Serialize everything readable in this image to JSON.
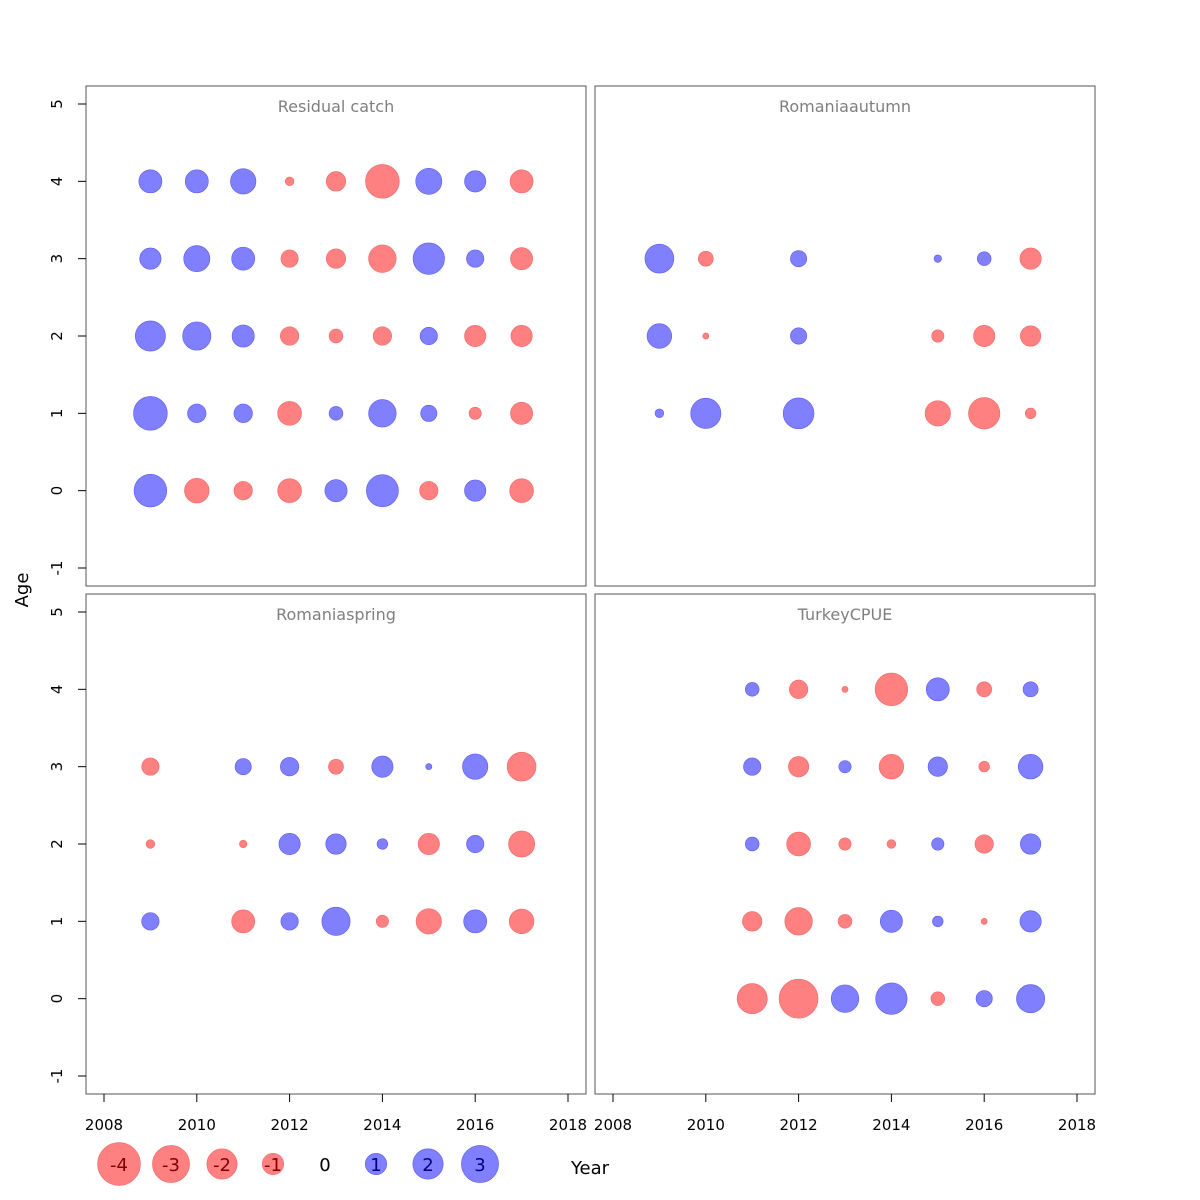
{
  "chart_data": {
    "type": "scatter",
    "subtype": "bubble-residuals",
    "xlabel": "Year",
    "ylabel": "Age",
    "xlim": [
      2008,
      2018
    ],
    "ylim": [
      -1,
      5
    ],
    "x_ticks": [
      "2008",
      "2010",
      "2012",
      "2014",
      "2016",
      "2018"
    ],
    "y_ticks": [
      "-1",
      "0",
      "1",
      "2",
      "3",
      "4",
      "5"
    ],
    "colors": {
      "positive": "#8080ff",
      "negative": "#ff8080"
    },
    "legend": {
      "placement": "bottom-left",
      "items": [
        {
          "label": "-4",
          "value": -4
        },
        {
          "label": "-3",
          "value": -3
        },
        {
          "label": "-2",
          "value": -2
        },
        {
          "label": "-1",
          "value": -1
        },
        {
          "label": "0",
          "value": 0
        },
        {
          "label": "1",
          "value": 1
        },
        {
          "label": "2",
          "value": 2
        },
        {
          "label": "3",
          "value": 3
        }
      ]
    },
    "panels": [
      {
        "title": "Residual catch",
        "points": [
          [
            2009,
            4,
            1.4
          ],
          [
            2010,
            4,
            1.4
          ],
          [
            2011,
            4,
            1.7
          ],
          [
            2012,
            4,
            -0.2
          ],
          [
            2013,
            4,
            -1.0
          ],
          [
            2014,
            4,
            -3.0
          ],
          [
            2015,
            4,
            1.8
          ],
          [
            2016,
            4,
            1.2
          ],
          [
            2017,
            4,
            -1.4
          ],
          [
            2009,
            3,
            1.2
          ],
          [
            2010,
            3,
            1.8
          ],
          [
            2011,
            3,
            1.4
          ],
          [
            2012,
            3,
            -0.8
          ],
          [
            2013,
            3,
            -1.0
          ],
          [
            2014,
            3,
            -2.0
          ],
          [
            2015,
            3,
            2.6
          ],
          [
            2016,
            3,
            0.8
          ],
          [
            2017,
            3,
            -1.3
          ],
          [
            2009,
            2,
            2.4
          ],
          [
            2010,
            2,
            2.1
          ],
          [
            2011,
            2,
            1.3
          ],
          [
            2012,
            2,
            -0.9
          ],
          [
            2013,
            2,
            -0.5
          ],
          [
            2014,
            2,
            -0.9
          ],
          [
            2015,
            2,
            0.8
          ],
          [
            2016,
            2,
            -1.2
          ],
          [
            2017,
            2,
            -1.2
          ],
          [
            2009,
            1,
            3.0
          ],
          [
            2010,
            1,
            0.9
          ],
          [
            2011,
            1,
            0.9
          ],
          [
            2012,
            1,
            -1.5
          ],
          [
            2013,
            1,
            0.5
          ],
          [
            2014,
            1,
            2.0
          ],
          [
            2015,
            1,
            0.7
          ],
          [
            2016,
            1,
            -0.4
          ],
          [
            2017,
            1,
            -1.3
          ],
          [
            2009,
            0,
            2.8
          ],
          [
            2010,
            0,
            -1.6
          ],
          [
            2011,
            0,
            -0.9
          ],
          [
            2012,
            0,
            -1.5
          ],
          [
            2013,
            0,
            1.3
          ],
          [
            2014,
            0,
            2.7
          ],
          [
            2015,
            0,
            -0.9
          ],
          [
            2016,
            0,
            1.2
          ],
          [
            2017,
            0,
            -1.5
          ]
        ]
      },
      {
        "title": "Romaniaautumn",
        "points": [
          [
            2009,
            3,
            2.2
          ],
          [
            2010,
            3,
            -0.6
          ],
          [
            2012,
            3,
            0.7
          ],
          [
            2015,
            3,
            0.15
          ],
          [
            2016,
            3,
            0.5
          ],
          [
            2017,
            3,
            -1.2
          ],
          [
            2009,
            2,
            1.6
          ],
          [
            2010,
            2,
            -0.1
          ],
          [
            2012,
            2,
            0.7
          ],
          [
            2015,
            2,
            -0.4
          ],
          [
            2016,
            2,
            -1.2
          ],
          [
            2017,
            2,
            -1.1
          ],
          [
            2009,
            1,
            0.2
          ],
          [
            2010,
            1,
            2.4
          ],
          [
            2012,
            1,
            2.5
          ],
          [
            2015,
            1,
            -1.7
          ],
          [
            2016,
            1,
            -2.6
          ],
          [
            2017,
            1,
            -0.3
          ]
        ]
      },
      {
        "title": "Romaniaspring",
        "points": [
          [
            2009,
            3,
            -0.8
          ],
          [
            2011,
            3,
            0.7
          ],
          [
            2012,
            3,
            0.9
          ],
          [
            2013,
            3,
            -0.6
          ],
          [
            2014,
            3,
            1.2
          ],
          [
            2015,
            3,
            0.1
          ],
          [
            2016,
            3,
            1.7
          ],
          [
            2017,
            3,
            -2.2
          ],
          [
            2009,
            2,
            -0.2
          ],
          [
            2011,
            2,
            -0.15
          ],
          [
            2012,
            2,
            1.2
          ],
          [
            2013,
            2,
            1.1
          ],
          [
            2014,
            2,
            0.3
          ],
          [
            2015,
            2,
            -1.2
          ],
          [
            2016,
            2,
            0.8
          ],
          [
            2017,
            2,
            -1.8
          ],
          [
            2009,
            1,
            0.8
          ],
          [
            2011,
            1,
            -1.4
          ],
          [
            2012,
            1,
            0.8
          ],
          [
            2013,
            1,
            2.1
          ],
          [
            2014,
            1,
            -0.4
          ],
          [
            2015,
            1,
            -1.7
          ],
          [
            2016,
            1,
            1.4
          ],
          [
            2017,
            1,
            -1.6
          ]
        ]
      },
      {
        "title": "TurkeyCPUE",
        "points": [
          [
            2011,
            4,
            0.5
          ],
          [
            2012,
            4,
            -0.9
          ],
          [
            2013,
            4,
            -0.1
          ],
          [
            2014,
            4,
            -2.8
          ],
          [
            2015,
            4,
            1.4
          ],
          [
            2016,
            4,
            -0.6
          ],
          [
            2017,
            4,
            0.6
          ],
          [
            2011,
            3,
            0.8
          ],
          [
            2012,
            3,
            -1.1
          ],
          [
            2013,
            3,
            0.4
          ],
          [
            2014,
            3,
            -1.6
          ],
          [
            2015,
            3,
            1.0
          ],
          [
            2016,
            3,
            -0.3
          ],
          [
            2017,
            3,
            1.6
          ],
          [
            2011,
            2,
            0.5
          ],
          [
            2012,
            2,
            -1.5
          ],
          [
            2013,
            2,
            -0.4
          ],
          [
            2014,
            2,
            -0.2
          ],
          [
            2015,
            2,
            0.4
          ],
          [
            2016,
            2,
            -0.9
          ],
          [
            2017,
            2,
            1.1
          ],
          [
            2011,
            1,
            -1.0
          ],
          [
            2012,
            1,
            -2.0
          ],
          [
            2013,
            1,
            -0.5
          ],
          [
            2014,
            1,
            1.3
          ],
          [
            2015,
            1,
            0.3
          ],
          [
            2016,
            1,
            -0.1
          ],
          [
            2017,
            1,
            1.2
          ],
          [
            2011,
            0,
            -2.4
          ],
          [
            2012,
            0,
            -4.0
          ],
          [
            2013,
            0,
            2.0
          ],
          [
            2014,
            0,
            2.6
          ],
          [
            2015,
            0,
            -0.5
          ],
          [
            2016,
            0,
            0.7
          ],
          [
            2017,
            0,
            2.1
          ]
        ]
      }
    ]
  }
}
